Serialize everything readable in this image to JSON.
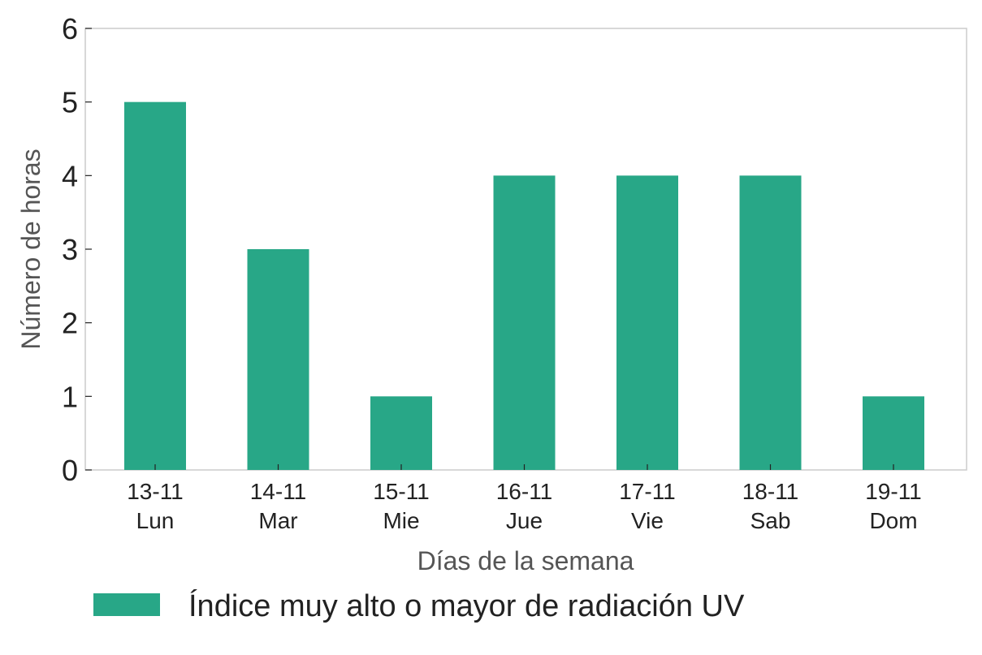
{
  "chart_data": {
    "type": "bar",
    "categories": [
      {
        "date": "13-11",
        "day": "Lun"
      },
      {
        "date": "14-11",
        "day": "Mar"
      },
      {
        "date": "15-11",
        "day": "Mie"
      },
      {
        "date": "16-11",
        "day": "Jue"
      },
      {
        "date": "17-11",
        "day": "Vie"
      },
      {
        "date": "18-11",
        "day": "Sab"
      },
      {
        "date": "19-11",
        "day": "Dom"
      }
    ],
    "series": [
      {
        "name": "Índice muy alto o mayor de radiación UV",
        "color": "#28a787",
        "values": [
          5,
          3,
          1,
          4,
          4,
          4,
          1
        ]
      }
    ],
    "xlabel": "Días de la semana",
    "ylabel": "Número de horas",
    "ylim": [
      0,
      6
    ],
    "yticks": [
      "0",
      "1",
      "2",
      "3",
      "4",
      "5",
      "6"
    ],
    "grid": false,
    "legend_position": "bottom"
  }
}
